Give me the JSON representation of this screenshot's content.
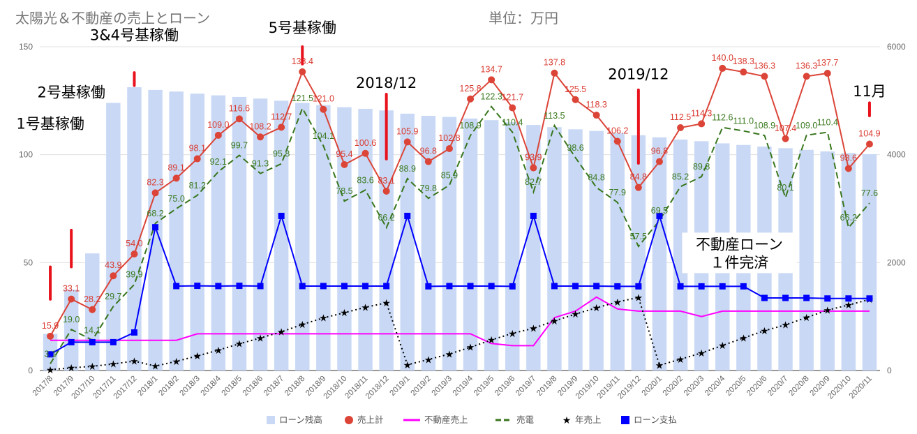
{
  "title": "太陽光＆不動産の売上とローン",
  "unit_label": "単位：万円",
  "colors": {
    "loan_balance": "#c9d9f5",
    "sales_total": "#db4437",
    "realestate_sales": "#ff00ff",
    "electric_sales": "#38761d",
    "annual_sales": "#000000",
    "loan_payment": "#0000ff",
    "annotation_marker": "#e8121d"
  },
  "chart_data": {
    "type": "combo",
    "categories": [
      "2017/8",
      "2017/9",
      "2017/10",
      "2017/11",
      "2017/12",
      "2018/1",
      "2018/2",
      "2018/3",
      "2018/4",
      "2018/5",
      "2018/6",
      "2018/7",
      "2018/8",
      "2018/9",
      "2018/10",
      "2018/11",
      "2018/12",
      "2019/1",
      "2019/2",
      "2019/3",
      "2019/4",
      "2019/5",
      "2019/6",
      "2019/7",
      "2019/8",
      "2019/9",
      "2019/10",
      "2019/11",
      "2019/12",
      "2020/1",
      "2020/2",
      "2020/3",
      "2020/4",
      "2020/5",
      "2020/6",
      "2020/7",
      "2020/8",
      "2020/9",
      "2020/10",
      "2020/11"
    ],
    "y_left": {
      "min": 0,
      "max": 150,
      "ticks": [
        0,
        50,
        100,
        150
      ]
    },
    "y_right": {
      "min": 0,
      "max": 6000,
      "ticks": [
        0,
        2000,
        4000,
        6000
      ]
    },
    "grid": true,
    "legend_position": "bottom",
    "series": [
      {
        "key": "loan_balance",
        "name": "ローン残高",
        "kind": "bar",
        "axis": "right",
        "values": [
          680,
          1500,
          2170,
          4960,
          5250,
          5200,
          5170,
          5130,
          5100,
          5070,
          5040,
          5000,
          4960,
          4920,
          4880,
          4850,
          4820,
          4760,
          4720,
          4700,
          4670,
          4640,
          4600,
          4550,
          4510,
          4470,
          4440,
          4400,
          4360,
          4320,
          4280,
          4250,
          4210,
          4180,
          4150,
          4120,
          4090,
          4060,
          4030,
          4010
        ]
      },
      {
        "key": "sales_total",
        "name": "売上計",
        "kind": "line-circle",
        "axis": "left",
        "values": [
          15.9,
          33.1,
          28.2,
          43.9,
          54.0,
          82.3,
          89.1,
          98.1,
          109.0,
          116.6,
          108.2,
          112.7,
          138.4,
          121.0,
          95.4,
          100.6,
          83.1,
          105.9,
          96.8,
          102.8,
          125.8,
          134.7,
          121.7,
          93.9,
          137.8,
          125.5,
          118.3,
          106.2,
          84.8,
          96.8,
          112.5,
          114.3,
          140.0,
          138.3,
          136.3,
          107.4,
          136.3,
          137.7,
          93.6,
          104.9
        ],
        "labels": [
          "15.9",
          "33.1",
          "28.2",
          "43.9",
          "54.0",
          "82.3",
          "89.1",
          "98.1",
          "109.0",
          "116.6",
          "108.2",
          "112.7",
          "138.4",
          "121.0",
          "95.4",
          "100.6",
          "83.1",
          "105.9",
          "96.8",
          "102.8",
          "125.8",
          "134.7",
          "121.7",
          "93.9",
          "137.8",
          "125.5",
          "118.3",
          "106.2",
          "84.8",
          "96.8",
          "112.5",
          "114.3",
          "140.0",
          "138.3",
          "136.3",
          "107.4",
          "136.3",
          "137.7",
          "93.6",
          "104.9"
        ]
      },
      {
        "key": "realestate_sales",
        "name": "不動産売上",
        "kind": "line",
        "axis": "left",
        "values": [
          14.0,
          14.0,
          14.0,
          14.0,
          14.0,
          14.0,
          14.0,
          17.0,
          17.0,
          17.0,
          17.0,
          17.0,
          17.0,
          17.0,
          17.0,
          17.0,
          17.0,
          17.0,
          17.0,
          17.0,
          17.0,
          12.5,
          11.5,
          11.5,
          24.5,
          27.5,
          34.0,
          28.5,
          27.5,
          27.5,
          27.5,
          25.0,
          27.5,
          27.5,
          27.5,
          27.5,
          27.5,
          27.5,
          27.5,
          27.5
        ]
      },
      {
        "key": "electric_sales",
        "name": "売電",
        "kind": "line-dashed",
        "axis": "left",
        "values": [
          3.1,
          19.0,
          14.1,
          29.7,
          39.9,
          68.2,
          75.0,
          81.2,
          92.1,
          99.7,
          91.3,
          95.8,
          121.5,
          104.1,
          78.5,
          83.6,
          66.2,
          88.9,
          79.8,
          85.9,
          108.9,
          122.3,
          110.4,
          82.7,
          113.5,
          98.6,
          84.8,
          77.9,
          57.5,
          69.5,
          85.2,
          89.8,
          112.6,
          111.0,
          108.9,
          80.1,
          109.0,
          110.4,
          66.2,
          77.6
        ],
        "labels": [
          "3.1",
          "19.0",
          "14.1",
          "29.7",
          "39.9",
          "68.2",
          "75.0",
          "81.2",
          "92.1",
          "99.7",
          "91.3",
          "95.8",
          "121.5",
          "104.1",
          "78.5",
          "83.6",
          "66.2",
          "88.9",
          "79.8",
          "85.9",
          "108.9",
          "122.3",
          "110.4",
          "82.7",
          "113.5",
          "98.6",
          "84.8",
          "77.9",
          "57.5",
          "69.5",
          "85.2",
          "89.8",
          "112.6",
          "111.0",
          "108.9",
          "80.1",
          "109.0",
          "110.4",
          "66.2",
          "77.6"
        ]
      },
      {
        "key": "annual_sales",
        "name": "年売上",
        "kind": "line-dotted-star",
        "axis": "right",
        "values": [
          16,
          49,
          77,
          121,
          175,
          82,
          171,
          269,
          378,
          495,
          603,
          716,
          854,
          975,
          1071,
          1171,
          1254,
          106,
          203,
          306,
          431,
          566,
          688,
          782,
          920,
          1045,
          1163,
          1270,
          1354,
          97,
          209,
          324,
          464,
          602,
          738,
          846,
          982,
          1120,
          1213,
          1318
        ]
      },
      {
        "key": "loan_payment",
        "name": "ローン支払",
        "kind": "line-square",
        "axis": "right",
        "values": [
          300,
          525,
          525,
          525,
          705,
          2655,
          1565,
          1570,
          1565,
          1570,
          1565,
          2865,
          1565,
          1565,
          1565,
          1565,
          1565,
          2865,
          1560,
          1565,
          1565,
          1565,
          1560,
          2865,
          1565,
          1565,
          1565,
          1560,
          1560,
          2865,
          1560,
          1560,
          1560,
          1560,
          1345,
          1345,
          1345,
          1335,
          1335,
          1335
        ]
      }
    ],
    "annotations": [
      {
        "text": "1号基稼働",
        "index": 0,
        "value": 112,
        "marker": [
          33,
          48
        ]
      },
      {
        "text": "2号基稼働",
        "index": 1,
        "value": 126.5,
        "marker": [
          48,
          65
        ]
      },
      {
        "text": "3&4号基稼働",
        "index": 4,
        "value": 153,
        "marker": [
          132,
          138
        ]
      },
      {
        "text": "5号基稼働",
        "index": 12,
        "value": 156.5,
        "marker": [
          142,
          150
        ]
      },
      {
        "text": "2018/12",
        "index": 16,
        "value": 131,
        "marker": [
          98,
          128
        ]
      },
      {
        "text": "2019/12",
        "index": 28,
        "value": 135,
        "marker": [
          96,
          130
        ]
      },
      {
        "text": "11月",
        "index": 39,
        "value": 127,
        "marker": [
          118,
          124
        ]
      },
      {
        "text": "不動産ローン",
        "index": 34,
        "value": 60,
        "boxed": true,
        "line2": "１件完済"
      }
    ]
  }
}
